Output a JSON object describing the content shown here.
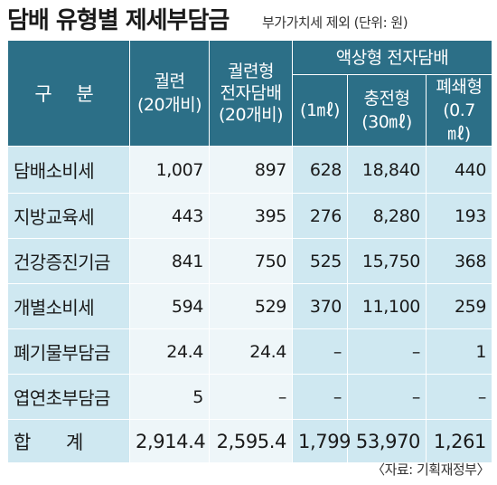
{
  "header": {
    "title": "담배 유형별 제세부담금",
    "subtitle": "부가가치세 제외 (단위: 원)"
  },
  "table": {
    "corner_label": "구  분",
    "col_cigarette": {
      "line1": "궐련",
      "line2": "(20개비)"
    },
    "col_heated": {
      "line1": "궐련형",
      "line2": "전자담배",
      "line3": "(20개비)"
    },
    "col_liquid_group": "액상형 전자담배",
    "col_liquid_1ml": "(1㎖)",
    "col_rechargeable": {
      "line1": "충전형",
      "line2": "(30㎖)"
    },
    "col_disposable": {
      "line1": "폐쇄형",
      "line2": "(0.7㎖)"
    },
    "rows": [
      {
        "label": "담배소비세",
        "values": [
          "1,007",
          "897",
          "628",
          "18,840",
          "440"
        ]
      },
      {
        "label": "지방교육세",
        "values": [
          "443",
          "395",
          "276",
          "8,280",
          "193"
        ]
      },
      {
        "label": "건강증진기금",
        "values": [
          "841",
          "750",
          "525",
          "15,750",
          "368"
        ]
      },
      {
        "label": "개별소비세",
        "values": [
          "594",
          "529",
          "370",
          "11,100",
          "259"
        ]
      },
      {
        "label": "폐기물부담금",
        "values": [
          "24.4",
          "24.4",
          "–",
          "–",
          "1"
        ]
      },
      {
        "label": "엽연초부담금",
        "values": [
          "5",
          "–",
          "–",
          "–",
          "–"
        ]
      }
    ],
    "total": {
      "label": "합 계",
      "values": [
        "2,914.4",
        "2,595.4",
        "1,799",
        "53,970",
        "1,261"
      ]
    }
  },
  "source": "〈자료: 기획재정부〉",
  "colors": {
    "header_bg": "#2c6f87",
    "label_bg": "#cfe8f1",
    "cell_bg": "#eef6f9"
  }
}
